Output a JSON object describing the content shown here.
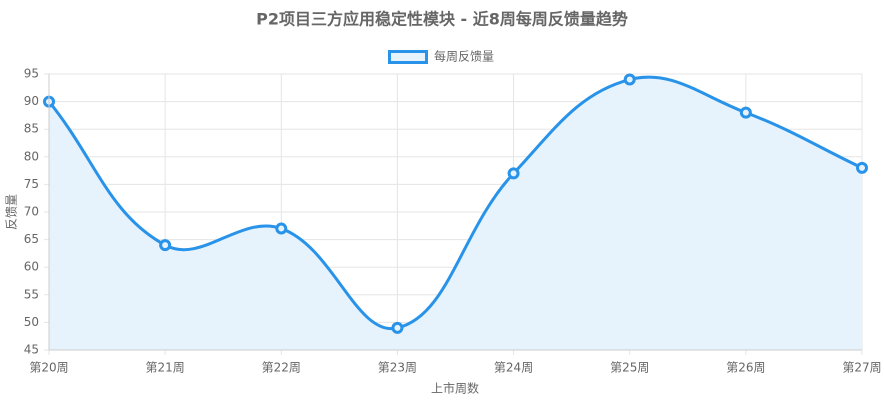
{
  "chart_data": {
    "type": "line",
    "title": "P2项目三方应用稳定性模块 - 近8周每周反馈量趋势",
    "x_label": "上市周数",
    "y_label": "反馈量",
    "categories": [
      "第20周",
      "第21周",
      "第22周",
      "第23周",
      "第24周",
      "第25周",
      "第26周",
      "第27周"
    ],
    "series": [
      {
        "name": "每周反馈量",
        "color": "#2893e8",
        "fill_color": "#e6f3fd",
        "values": [
          90,
          64,
          67,
          49,
          77,
          94,
          88,
          78
        ]
      }
    ],
    "ylim": [
      45,
      95
    ],
    "yticks": [
      45,
      50,
      55,
      60,
      65,
      70,
      75,
      80,
      85,
      90,
      95
    ],
    "grid": true,
    "smooth": true,
    "fill": true,
    "legend": "top"
  }
}
